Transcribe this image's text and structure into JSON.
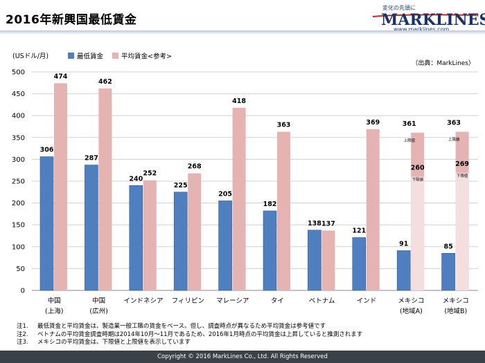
{
  "page": {
    "title": "2016年新興国最低賃金",
    "logo_tagline": "変化の先頭に",
    "logo_name": "MARKLINES",
    "logo_url": "www.marklines.com",
    "footer": "Copyright © 2016 MarkLines Co., Ltd. All Rights Reserved",
    "notes": [
      {
        "num": "注1.",
        "text": "最低賃金と平均賃金は、製造業一般工職の賃金をベース。但し、調査時点が異なるため平均賃金は参考値です"
      },
      {
        "num": "注2.",
        "text": "ベトナムの平均賃金調査時期は2014年10月～11月であるため、2016年1月時点の平均賃金は上昇していると推測されます"
      },
      {
        "num": "注3.",
        "text": "メキシコの平均賃金は、下限値と上限値を表示しています"
      }
    ]
  },
  "chart_data": {
    "type": "bar",
    "unit_label": "(USドル/月)",
    "source": "（出典：MarkLines）",
    "ylim": [
      0,
      500
    ],
    "yticks": [
      0,
      50,
      100,
      150,
      200,
      250,
      300,
      350,
      400,
      450,
      500
    ],
    "categories": [
      {
        "line1": "中国",
        "line2": "(上海)"
      },
      {
        "line1": "中国",
        "line2": "(広州)"
      },
      {
        "line1": "インドネシア",
        "line2": ""
      },
      {
        "line1": "フィリピン",
        "line2": ""
      },
      {
        "line1": "マレーシア",
        "line2": ""
      },
      {
        "line1": "タイ",
        "line2": ""
      },
      {
        "line1": "ベトナム",
        "line2": ""
      },
      {
        "line1": "インド",
        "line2": ""
      },
      {
        "line1": "メキシコ",
        "line2": "(地域A)"
      },
      {
        "line1": "メキシコ",
        "line2": "(地域B)"
      }
    ],
    "series": [
      {
        "name": "最低賃金",
        "color": "#4f7fbf",
        "values": [
          306,
          287,
          240,
          225,
          205,
          182,
          138,
          121,
          91,
          85
        ]
      },
      {
        "name": "平均賃金<参考>",
        "color": "#e6b3b3",
        "values": [
          474,
          462,
          252,
          268,
          418,
          363,
          137,
          369,
          null,
          null
        ]
      }
    ],
    "mexico_range": {
      "upper_label": "上限値",
      "lower_label": "下限値",
      "upper_color": "#e6b3b3",
      "lower_color": "#f4dede",
      "upper": [
        361,
        363
      ],
      "lower": [
        260,
        269
      ],
      "category_index": [
        8,
        9
      ]
    },
    "grid": true,
    "legend": "top-left"
  }
}
